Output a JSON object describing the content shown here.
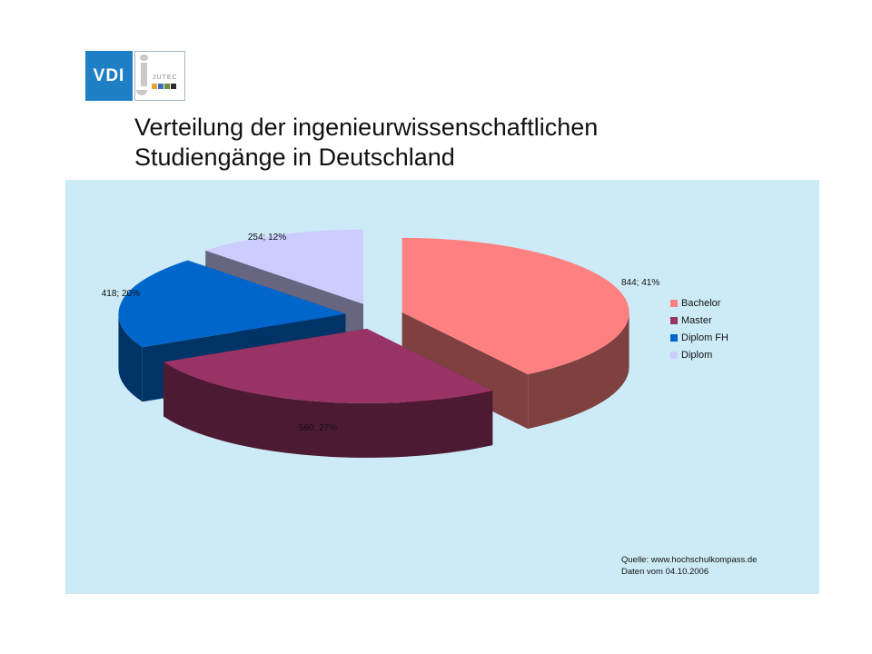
{
  "logo": {
    "left_text": "VDI",
    "right_text": "JUTEC",
    "squares": [
      "#e8a33d",
      "#3f6fb5",
      "#6a8d3a",
      "#2b2b2b"
    ]
  },
  "title": {
    "line1": "Verteilung der ingenieurwissenschaftlichen",
    "line2": "Studiengänge in Deutschland"
  },
  "chart_data": {
    "type": "pie",
    "style": "3d-exploded",
    "grid": false,
    "legend_position": "right",
    "slices": [
      {
        "name": "Bachelor",
        "value": 844,
        "percent": 41,
        "label": "844; 41%",
        "color": "#ff8080",
        "side_color": "#7f4040"
      },
      {
        "name": "Master",
        "value": 560,
        "percent": 27,
        "label": "560; 27%",
        "color": "#993366",
        "side_color": "#4d1a33"
      },
      {
        "name": "Diplom FH",
        "value": 418,
        "percent": 20,
        "label": "418; 20%",
        "color": "#0066cc",
        "side_color": "#003366"
      },
      {
        "name": "Diplom",
        "value": 254,
        "percent": 12,
        "label": "254; 12%",
        "color": "#ccccff",
        "side_color": "#666680"
      }
    ]
  },
  "source": {
    "line1": "Quelle: www.hochschulkompass.de",
    "line2": "Daten vom 04.10.2006"
  }
}
